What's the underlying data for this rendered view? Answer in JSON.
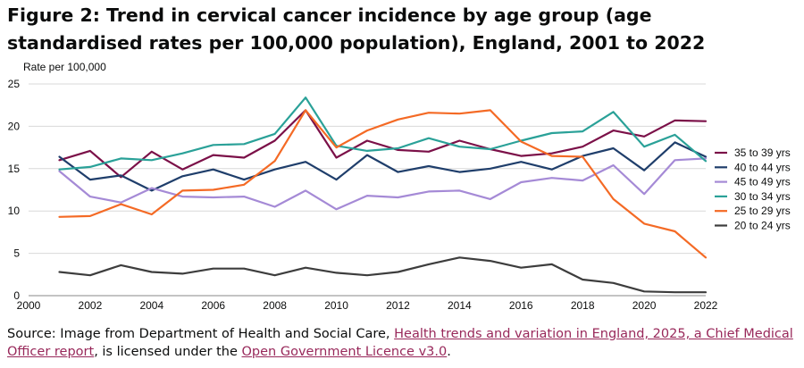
{
  "title": "Figure 2: Trend in cervical cancer incidence by age group (age standardised rates per 100,000 population), England, 2001 to 2022",
  "source": {
    "prefix": "Source: Image from Department of Health and Social Care, ",
    "link1": "Health trends and variation in England, 2025, a Chief Medical Officer report",
    "middle": ", is licensed under the ",
    "link2": "Open Government Licence v3.0",
    "suffix": ".",
    "link_color": "#98285a"
  },
  "chart_data": {
    "type": "line",
    "title": "Trend in cervical cancer incidence by age group",
    "ylabel": "Rate per 100,000",
    "xlabel": "",
    "xlim": [
      2000,
      2022
    ],
    "ylim": [
      0,
      25
    ],
    "xticks": [
      2000,
      2002,
      2004,
      2006,
      2008,
      2010,
      2012,
      2014,
      2016,
      2018,
      2020,
      2022
    ],
    "yticks": [
      0,
      5,
      10,
      15,
      20,
      25
    ],
    "grid": true,
    "legend_position": "right",
    "x": [
      2001,
      2002,
      2003,
      2004,
      2005,
      2006,
      2007,
      2008,
      2009,
      2010,
      2011,
      2012,
      2013,
      2014,
      2015,
      2016,
      2017,
      2018,
      2019,
      2020,
      2021,
      2022
    ],
    "series": [
      {
        "name": "35 to 39 yrs",
        "color": "#7b1048",
        "values": [
          16.0,
          17.1,
          14.0,
          17.0,
          14.9,
          16.6,
          16.3,
          18.3,
          21.9,
          16.3,
          18.3,
          17.2,
          17.0,
          18.3,
          17.3,
          16.5,
          16.8,
          17.6,
          19.5,
          18.8,
          20.7,
          20.6
        ]
      },
      {
        "name": "40 to 44 yrs",
        "color": "#1f3e6b",
        "values": [
          16.4,
          13.7,
          14.2,
          12.4,
          14.1,
          14.9,
          13.7,
          14.9,
          15.8,
          13.7,
          16.6,
          14.6,
          15.3,
          14.6,
          15.0,
          15.8,
          14.9,
          16.5,
          17.4,
          14.8,
          18.1,
          16.4
        ]
      },
      {
        "name": "45 to 49 yrs",
        "color": "#a58ad6",
        "values": [
          14.7,
          11.7,
          11.0,
          12.7,
          11.7,
          11.6,
          11.7,
          10.5,
          12.4,
          10.2,
          11.8,
          11.6,
          12.3,
          12.4,
          11.4,
          13.4,
          13.9,
          13.6,
          15.4,
          12.0,
          16.0,
          16.2
        ]
      },
      {
        "name": "30 to 34 yrs",
        "color": "#2aa198",
        "values": [
          14.9,
          15.2,
          16.2,
          16.0,
          16.8,
          17.8,
          17.9,
          19.1,
          23.4,
          17.7,
          17.1,
          17.4,
          18.6,
          17.6,
          17.3,
          18.3,
          19.2,
          19.4,
          21.7,
          17.6,
          19.0,
          15.9
        ]
      },
      {
        "name": "25 to 29 yrs",
        "color": "#f46a25",
        "values": [
          9.3,
          9.4,
          10.8,
          9.6,
          12.4,
          12.5,
          13.1,
          15.9,
          21.9,
          17.5,
          19.5,
          20.8,
          21.6,
          21.5,
          21.9,
          18.2,
          16.5,
          16.4,
          11.4,
          8.5,
          7.6,
          4.5
        ]
      },
      {
        "name": "20 to 24 yrs",
        "color": "#3d3d3d",
        "values": [
          2.8,
          2.4,
          3.6,
          2.8,
          2.6,
          3.2,
          3.2,
          2.4,
          3.3,
          2.7,
          2.4,
          2.8,
          3.7,
          4.5,
          4.1,
          3.3,
          3.7,
          1.9,
          1.5,
          0.5,
          0.4,
          0.4
        ]
      }
    ]
  }
}
